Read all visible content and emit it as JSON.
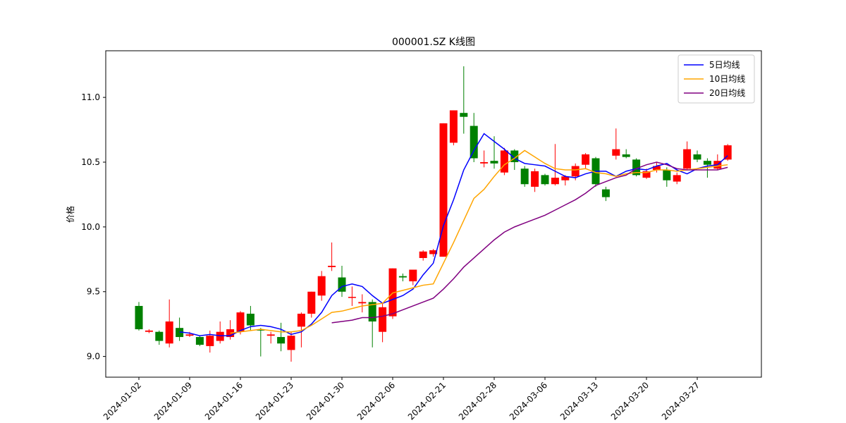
{
  "chart_data": {
    "type": "candlestick",
    "title": "000001.SZ K线图",
    "ylabel": "价格",
    "categories": [
      "2024-01-02",
      null,
      null,
      null,
      null,
      "2024-01-09",
      null,
      null,
      null,
      null,
      "2024-01-16",
      null,
      null,
      null,
      null,
      "2024-01-23",
      null,
      null,
      null,
      null,
      "2024-01-30",
      null,
      null,
      null,
      null,
      "2024-02-06",
      null,
      null,
      null,
      null,
      "2024-02-21",
      null,
      null,
      null,
      null,
      "2024-02-28",
      null,
      null,
      null,
      null,
      "2024-03-06",
      null,
      null,
      null,
      null,
      "2024-03-13",
      null,
      null,
      null,
      null,
      "2024-03-20",
      null,
      null,
      null,
      null,
      "2024-03-27",
      null,
      null,
      null
    ],
    "open": [
      9.39,
      9.19,
      9.19,
      9.1,
      9.22,
      9.16,
      9.15,
      9.08,
      9.12,
      9.15,
      9.19,
      9.33,
      9.21,
      9.16,
      9.15,
      9.05,
      9.23,
      9.33,
      9.47,
      9.69,
      9.61,
      9.46,
      9.41,
      9.42,
      9.19,
      9.31,
      9.62,
      9.58,
      9.76,
      9.79,
      9.77,
      10.65,
      10.88,
      10.78,
      10.49,
      10.51,
      10.42,
      10.59,
      10.45,
      10.31,
      10.4,
      10.33,
      10.36,
      10.39,
      10.48,
      10.53,
      10.29,
      10.55,
      10.56,
      10.52,
      10.38,
      10.44,
      10.44,
      10.35,
      10.45,
      10.56,
      10.51,
      10.45,
      10.52
    ],
    "high": [
      9.42,
      9.21,
      9.2,
      9.44,
      9.3,
      9.19,
      9.16,
      9.2,
      9.27,
      9.28,
      9.35,
      9.39,
      9.22,
      9.19,
      9.26,
      9.19,
      9.34,
      9.5,
      9.66,
      9.88,
      9.7,
      9.54,
      9.48,
      9.44,
      9.41,
      9.68,
      9.64,
      9.67,
      9.82,
      9.83,
      10.8,
      10.9,
      11.24,
      10.88,
      10.59,
      10.7,
      10.61,
      10.6,
      10.47,
      10.45,
      10.41,
      10.64,
      10.4,
      10.49,
      10.57,
      10.54,
      10.31,
      10.76,
      10.6,
      10.53,
      10.45,
      10.5,
      10.46,
      10.42,
      10.66,
      10.59,
      10.53,
      10.56,
      10.64
    ],
    "low": [
      9.2,
      9.18,
      9.09,
      9.07,
      9.12,
      9.15,
      9.08,
      9.03,
      9.1,
      9.13,
      9.17,
      9.2,
      9.0,
      9.1,
      9.04,
      8.96,
      9.07,
      9.3,
      9.43,
      9.66,
      9.46,
      9.39,
      9.34,
      9.07,
      9.11,
      9.29,
      9.58,
      9.55,
      9.74,
      9.77,
      9.77,
      10.63,
      10.72,
      10.5,
      10.46,
      10.45,
      10.4,
      10.44,
      10.31,
      10.27,
      10.32,
      10.32,
      10.32,
      10.36,
      10.45,
      10.31,
      10.2,
      10.52,
      10.53,
      10.39,
      10.37,
      10.42,
      10.31,
      10.33,
      10.44,
      10.5,
      10.38,
      10.44,
      10.51
    ],
    "close": [
      9.21,
      9.2,
      9.12,
      9.27,
      9.15,
      9.17,
      9.09,
      9.16,
      9.19,
      9.21,
      9.34,
      9.24,
      9.2,
      9.17,
      9.1,
      9.16,
      9.33,
      9.5,
      9.62,
      9.7,
      9.5,
      9.46,
      9.42,
      9.27,
      9.38,
      9.68,
      9.61,
      9.67,
      9.81,
      9.82,
      10.8,
      10.9,
      10.85,
      10.53,
      10.5,
      10.49,
      10.59,
      10.5,
      10.33,
      10.43,
      10.33,
      10.38,
      10.39,
      10.47,
      10.56,
      10.33,
      10.23,
      10.6,
      10.54,
      10.4,
      10.43,
      10.47,
      10.36,
      10.4,
      10.6,
      10.52,
      10.48,
      10.51,
      10.63
    ],
    "up_color": "#ff0000",
    "down_color": "#008000",
    "series": [
      {
        "name": "5日均线",
        "color": "#0000ff",
        "values": [
          null,
          null,
          null,
          null,
          9.19,
          9.18,
          9.16,
          9.17,
          9.16,
          9.16,
          9.2,
          9.23,
          9.24,
          9.23,
          9.21,
          9.17,
          9.19,
          9.25,
          9.34,
          9.47,
          9.54,
          9.56,
          9.54,
          9.47,
          9.41,
          9.44,
          9.47,
          9.52,
          9.63,
          9.72,
          10.01,
          10.21,
          10.44,
          10.59,
          10.72,
          10.66,
          10.6,
          10.53,
          10.49,
          10.48,
          10.47,
          10.43,
          10.39,
          10.38,
          10.41,
          10.43,
          10.43,
          10.39,
          10.43,
          10.45,
          10.44,
          10.47,
          10.49,
          10.44,
          10.41,
          10.45,
          10.47,
          10.48,
          10.55
        ]
      },
      {
        "name": "10日均线",
        "color": "#ffa500",
        "values": [
          null,
          null,
          null,
          null,
          null,
          null,
          null,
          null,
          null,
          9.18,
          9.19,
          9.2,
          9.21,
          9.2,
          9.19,
          9.19,
          9.2,
          9.24,
          9.29,
          9.34,
          9.35,
          9.37,
          9.39,
          9.4,
          9.41,
          9.49,
          9.51,
          9.53,
          9.55,
          9.56,
          9.72,
          9.88,
          10.05,
          10.22,
          10.29,
          10.39,
          10.48,
          10.53,
          10.59,
          10.54,
          10.49,
          10.45,
          10.44,
          10.44,
          10.45,
          10.42,
          10.41,
          10.39,
          10.41,
          10.42,
          10.42,
          10.44,
          10.44,
          10.43,
          10.44,
          10.45,
          10.46,
          10.47,
          10.48
        ]
      },
      {
        "name": "20日均线",
        "color": "#800080",
        "values": [
          null,
          null,
          null,
          null,
          null,
          null,
          null,
          null,
          null,
          null,
          null,
          null,
          null,
          null,
          null,
          null,
          null,
          null,
          null,
          9.26,
          9.27,
          9.28,
          9.3,
          9.3,
          9.31,
          9.33,
          9.36,
          9.39,
          9.42,
          9.45,
          9.52,
          9.6,
          9.69,
          9.76,
          9.83,
          9.9,
          9.96,
          10.0,
          10.03,
          10.06,
          10.09,
          10.13,
          10.17,
          10.21,
          10.26,
          10.32,
          10.35,
          10.38,
          10.4,
          10.45,
          10.48,
          10.5,
          10.48,
          10.45,
          10.44,
          10.44,
          10.44,
          10.44,
          10.46
        ]
      }
    ],
    "ylim": [
      8.84,
      11.36
    ],
    "yticks": [
      {
        "value": 9,
        "label": "9.0"
      },
      {
        "value": 9.5,
        "label": "9.5"
      },
      {
        "value": 10,
        "label": "10.0"
      },
      {
        "value": 10.5,
        "label": "10.5"
      },
      {
        "value": 11,
        "label": "11.0"
      }
    ],
    "legend": "upper right",
    "grid": false
  }
}
